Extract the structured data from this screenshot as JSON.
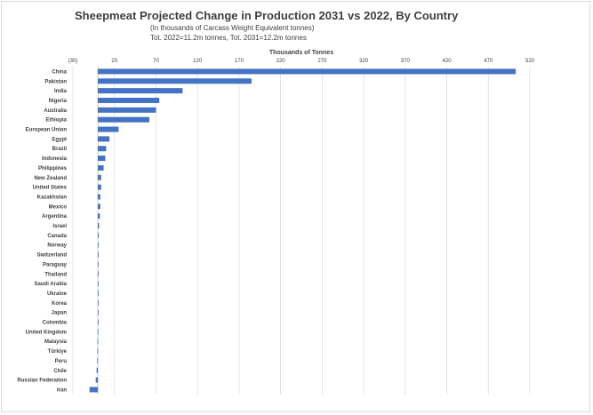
{
  "chart_data": {
    "type": "bar",
    "orientation": "horizontal",
    "title": "Sheepmeat Projected Change in Production 2031 vs 2022, By Country",
    "subtitle_lines": [
      "(In thousands of Carcass Weight Equivalent tonnes)",
      "Tot. 2022=11.2m tonnes, Tot. 2031=12.2m tonnes"
    ],
    "xlabel": "Thousands of Tonnes",
    "xlim": [
      -30,
      520
    ],
    "tick_values": [
      -30,
      20,
      70,
      120,
      170,
      220,
      270,
      320,
      370,
      420,
      470,
      520
    ],
    "tick_labels": [
      "(30)",
      "20",
      "70",
      "120",
      "170",
      "220",
      "270",
      "320",
      "370",
      "420",
      "470",
      "520"
    ],
    "grid": true,
    "bar_color": "#4472c4",
    "categories": [
      "China",
      "Pakistan",
      "India",
      "Nigeria",
      "Australia",
      "Ethiopia",
      "European Union",
      "Egypt",
      "Brazil",
      "Indonesia",
      "Philippines",
      "New Zealand",
      "United States",
      "Kazakhstan",
      "Mexico",
      "Argentina",
      "Israel",
      "Canada",
      "Norway",
      "Switzerland",
      "Paraguay",
      "Thailand",
      "Saudi Arabia",
      "Ukraine",
      "Korea",
      "Japan",
      "Colombia",
      "United Kingdom",
      "Malaysia",
      "Türkiye",
      "Peru",
      "Chile",
      "Russian Federation",
      "Iran"
    ],
    "values": [
      503,
      185,
      102,
      74,
      70,
      62,
      25,
      14,
      10,
      9,
      7,
      4,
      4,
      3,
      3,
      2.5,
      1.5,
      1,
      0.5,
      0.2,
      0.2,
      0.1,
      0.1,
      0.1,
      0.1,
      0.1,
      0.1,
      -0.2,
      -0.4,
      -0.6,
      -0.8,
      -1.5,
      -2.5,
      -10
    ]
  }
}
